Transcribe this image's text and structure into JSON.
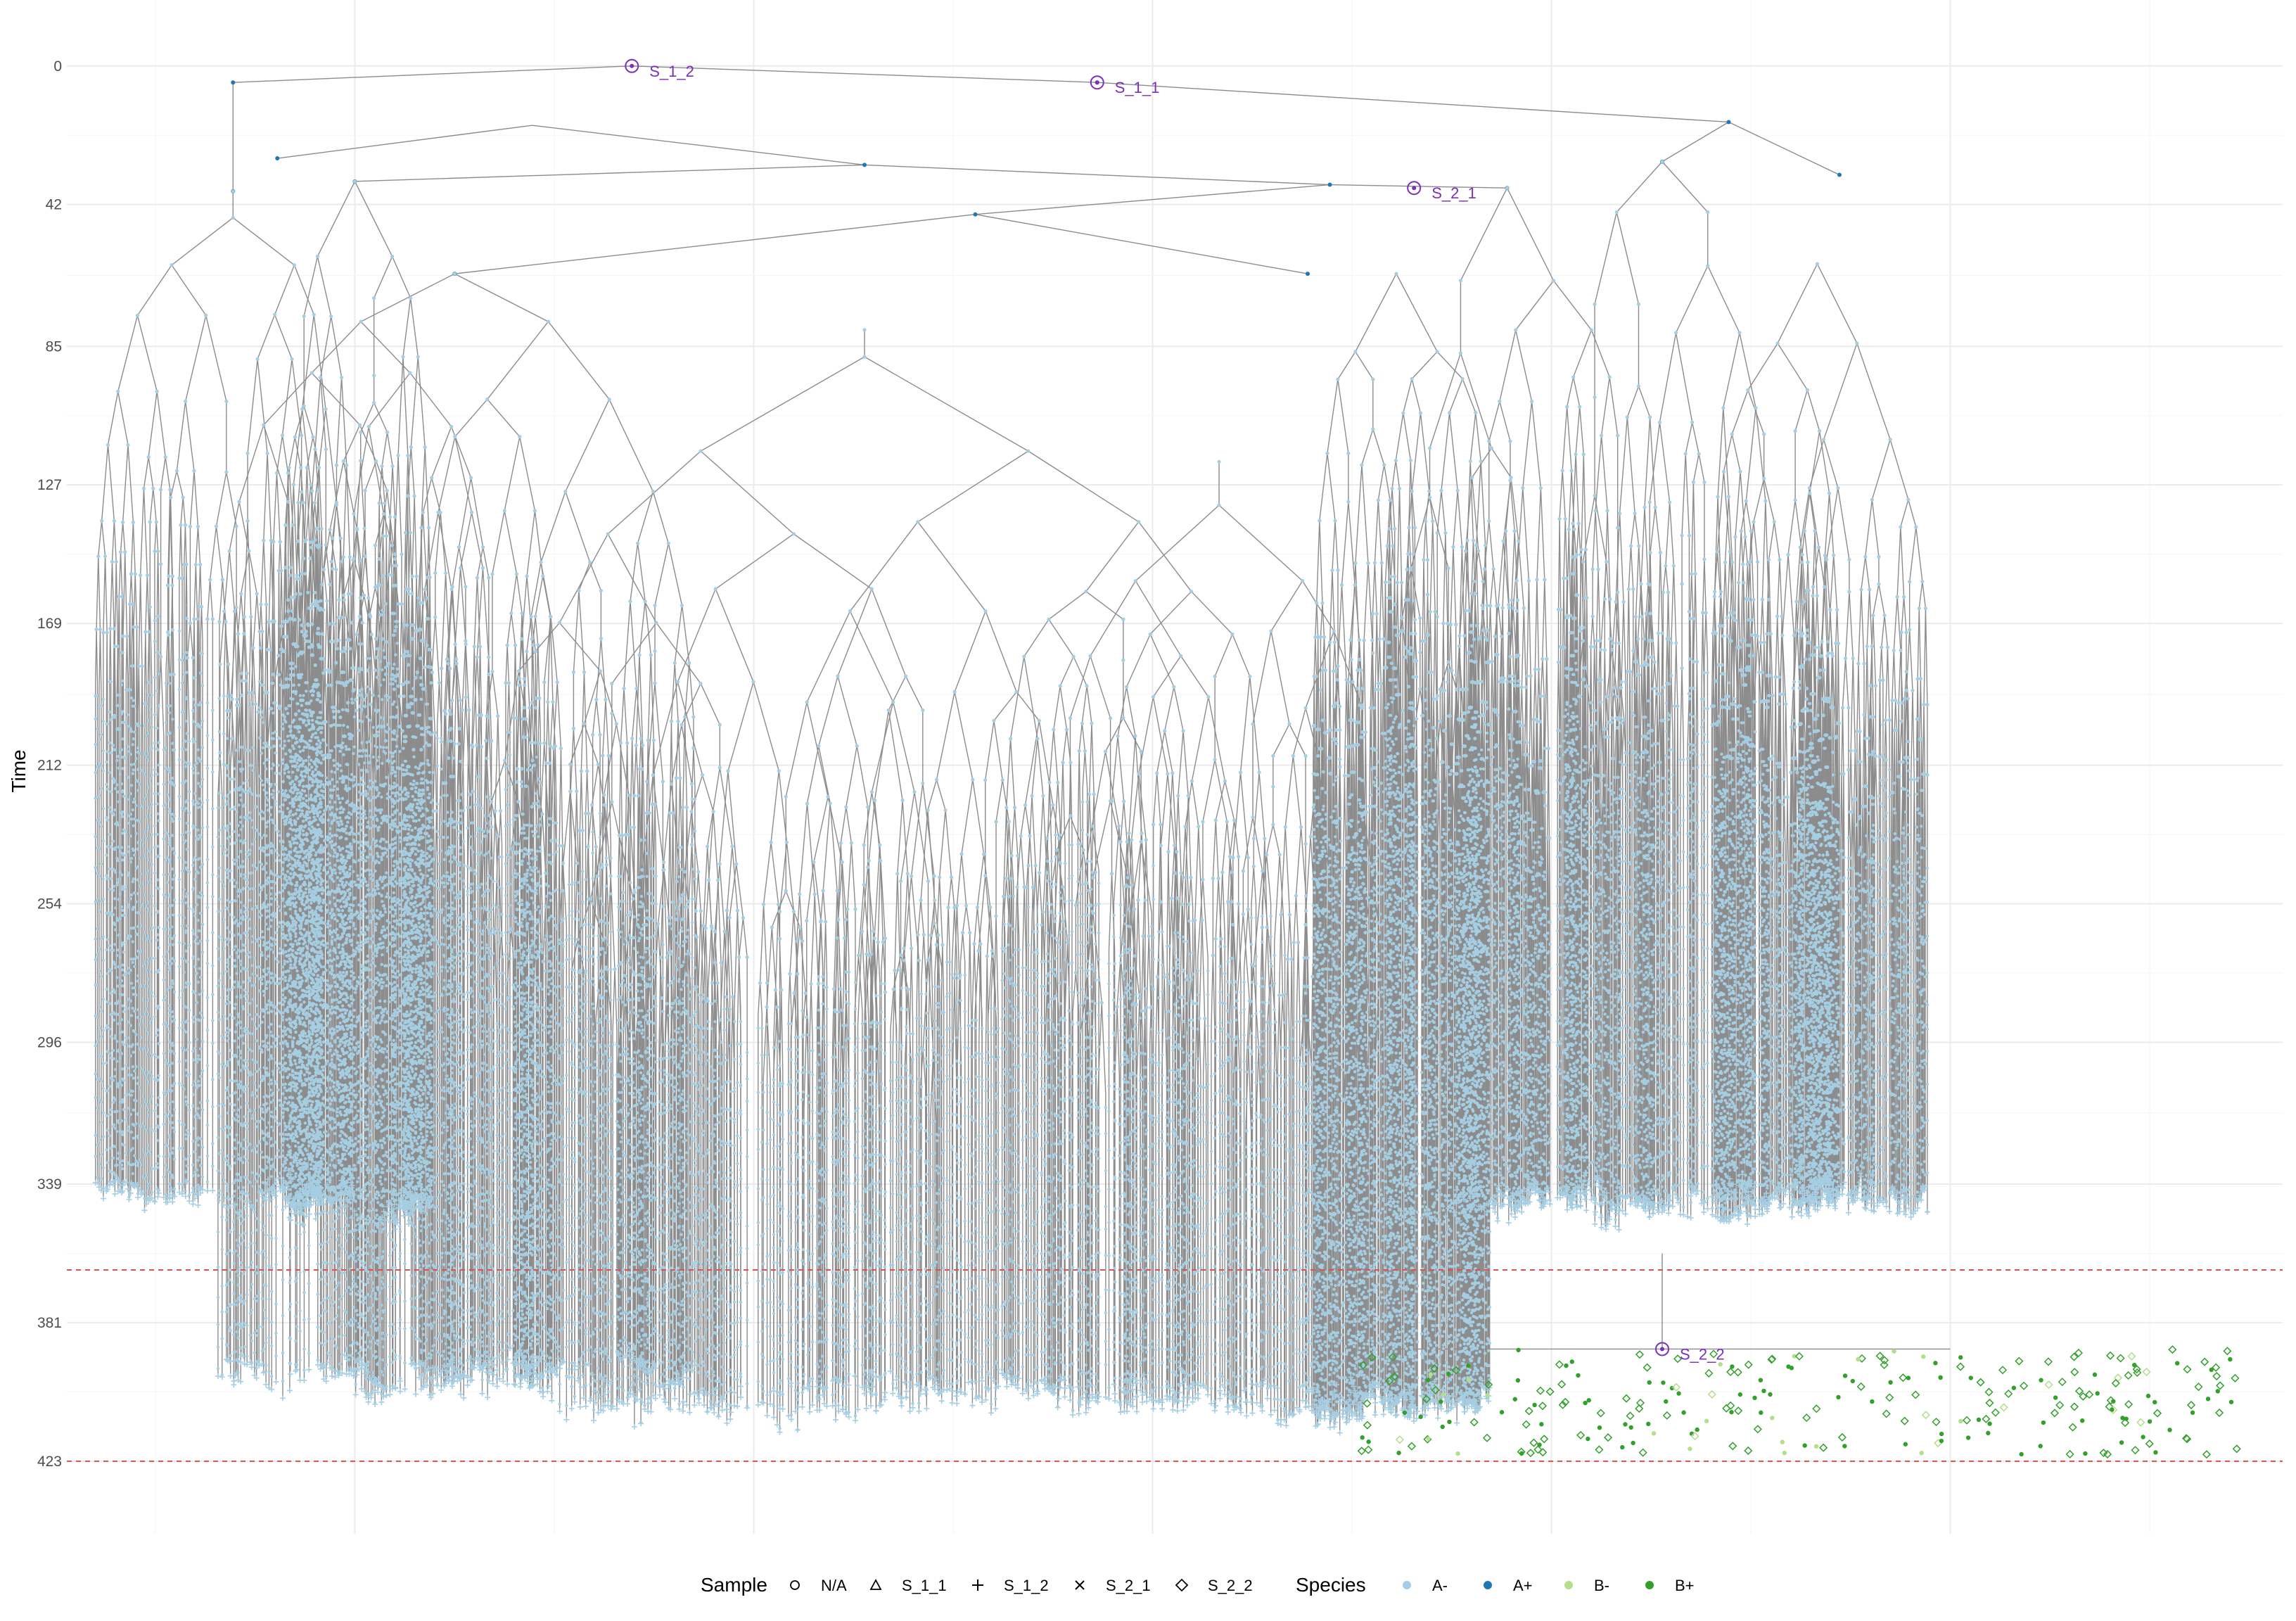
{
  "chart_data": {
    "type": "tree",
    "xlabel": "",
    "ylabel": "Time",
    "ylim": [
      -20,
      445
    ],
    "y_ticks": [
      0,
      42,
      85,
      127,
      169,
      212,
      254,
      296,
      339,
      381,
      423
    ],
    "grid": true,
    "reference_lines": [
      {
        "y": 365,
        "color": "#d9534f",
        "style": "dashed"
      },
      {
        "y": 423,
        "color": "#d9534f",
        "style": "dashed"
      }
    ],
    "sample_nodes": [
      {
        "label": "S_1_2",
        "time": 0
      },
      {
        "label": "S_1_1",
        "time": 5
      },
      {
        "label": "S_2_1",
        "time": 37
      },
      {
        "label": "S_2_2",
        "time": 389
      }
    ],
    "legend": {
      "position": "bottom",
      "sample": {
        "title": "Sample",
        "entries": [
          {
            "label": "N/A",
            "shape": "circle-open"
          },
          {
            "label": "S_1_1",
            "shape": "triangle-open"
          },
          {
            "label": "S_1_2",
            "shape": "plus"
          },
          {
            "label": "S_2_1",
            "shape": "cross"
          },
          {
            "label": "S_2_2",
            "shape": "diamond-open"
          }
        ]
      },
      "species": {
        "title": "Species",
        "entries": [
          {
            "label": "A-",
            "color": "#a6cee3"
          },
          {
            "label": "A+",
            "color": "#1f78b4"
          },
          {
            "label": "B-",
            "color": "#b2df8a"
          },
          {
            "label": "B+",
            "color": "#33a02c"
          }
        ]
      }
    }
  }
}
